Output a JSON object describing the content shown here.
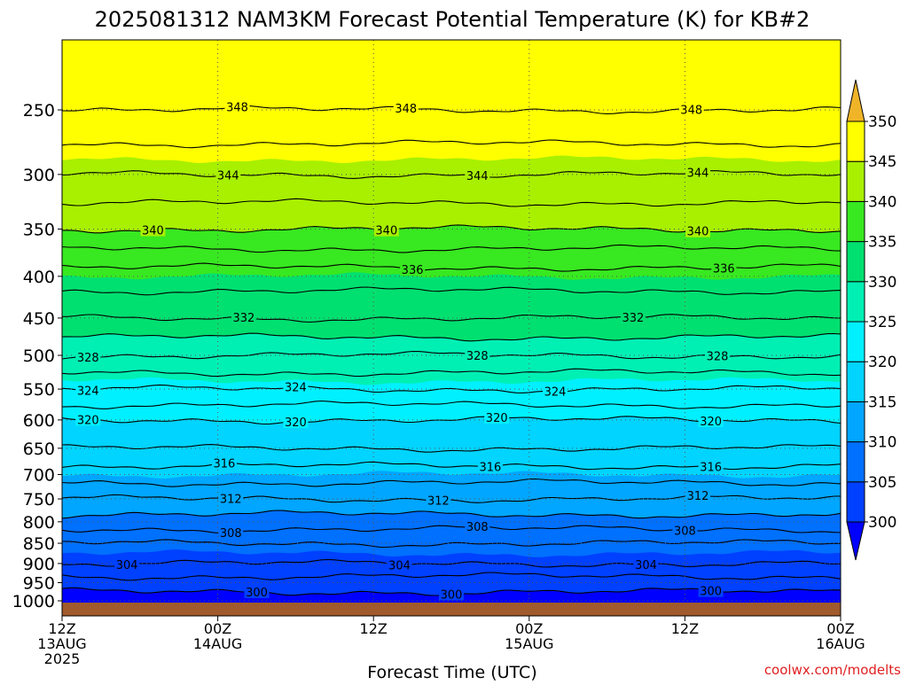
{
  "chart_data": {
    "type": "heatmap",
    "title": "2025081312 NAM3KM Forecast Potential Temperature (K) for KB#2",
    "xlabel": "Forecast Time (UTC)",
    "ylabel": "",
    "credit": "coolwx.com/modelts",
    "x_ticks": [
      {
        "hours": 0,
        "lines": [
          "12Z",
          "13AUG",
          "2025"
        ]
      },
      {
        "hours": 12,
        "lines": [
          "00Z",
          "14AUG"
        ]
      },
      {
        "hours": 24,
        "lines": [
          "12Z"
        ]
      },
      {
        "hours": 36,
        "lines": [
          "00Z",
          "15AUG"
        ]
      },
      {
        "hours": 48,
        "lines": [
          "12Z"
        ]
      },
      {
        "hours": 60,
        "lines": [
          "00Z",
          "16AUG"
        ]
      }
    ],
    "xlim": [
      0,
      60
    ],
    "y_ticks": [
      250,
      300,
      350,
      400,
      450,
      500,
      550,
      600,
      650,
      700,
      750,
      800,
      850,
      900,
      950,
      1000
    ],
    "ylim": [
      1010,
      205
    ],
    "colorbar": {
      "ticks": [
        300,
        305,
        310,
        315,
        320,
        325,
        330,
        335,
        340,
        345,
        350
      ],
      "bins": [
        {
          "lo": 295,
          "hi": 300,
          "color": "#0000ff"
        },
        {
          "lo": 300,
          "hi": 305,
          "color": "#0040ff"
        },
        {
          "lo": 305,
          "hi": 310,
          "color": "#0070ff"
        },
        {
          "lo": 310,
          "hi": 315,
          "color": "#00a6ff"
        },
        {
          "lo": 315,
          "hi": 320,
          "color": "#00d4ff"
        },
        {
          "lo": 320,
          "hi": 325,
          "color": "#00f0ff"
        },
        {
          "lo": 325,
          "hi": 330,
          "color": "#00f0b4"
        },
        {
          "lo": 330,
          "hi": 335,
          "color": "#00e070"
        },
        {
          "lo": 335,
          "hi": 340,
          "color": "#38e820"
        },
        {
          "lo": 340,
          "hi": 345,
          "color": "#a8f000"
        },
        {
          "lo": 345,
          "hi": 350,
          "color": "#ffff00"
        },
        {
          "lo": 350,
          "hi": 355,
          "color": "#f0b428"
        }
      ]
    },
    "contour_profile": [
      {
        "p": 230,
        "theta": 350
      },
      {
        "p": 250,
        "theta": 348
      },
      {
        "p": 300,
        "theta": 344
      },
      {
        "p": 350,
        "theta": 340
      },
      {
        "p": 400,
        "theta": 335
      },
      {
        "p": 450,
        "theta": 332
      },
      {
        "p": 500,
        "theta": 328
      },
      {
        "p": 550,
        "theta": 324
      },
      {
        "p": 600,
        "theta": 320
      },
      {
        "p": 650,
        "theta": 318
      },
      {
        "p": 700,
        "theta": 315
      },
      {
        "p": 750,
        "theta": 312
      },
      {
        "p": 800,
        "theta": 309
      },
      {
        "p": 850,
        "theta": 306
      },
      {
        "p": 900,
        "theta": 304
      },
      {
        "p": 950,
        "theta": 301
      },
      {
        "p": 1000,
        "theta": 299
      }
    ],
    "contour_levels": [
      300,
      302,
      304,
      306,
      308,
      310,
      312,
      314,
      316,
      318,
      320,
      322,
      324,
      326,
      328,
      330,
      332,
      334,
      336,
      338,
      340,
      342,
      344,
      346,
      348
    ],
    "contour_labels": [
      {
        "level": 348,
        "hours": 13.5
      },
      {
        "level": 348,
        "hours": 26.5
      },
      {
        "level": 348,
        "hours": 48.5
      },
      {
        "level": 344,
        "hours": 12.8
      },
      {
        "level": 344,
        "hours": 32.0
      },
      {
        "level": 344,
        "hours": 49.0
      },
      {
        "level": 340,
        "hours": 7.0
      },
      {
        "level": 340,
        "hours": 25.0
      },
      {
        "level": 340,
        "hours": 49.0
      },
      {
        "level": 336,
        "hours": 27.0
      },
      {
        "level": 336,
        "hours": 51.0
      },
      {
        "level": 332,
        "hours": 14.0
      },
      {
        "level": 332,
        "hours": 44.0
      },
      {
        "level": 328,
        "hours": 2.0
      },
      {
        "level": 328,
        "hours": 32.0
      },
      {
        "level": 328,
        "hours": 50.5
      },
      {
        "level": 324,
        "hours": 2.0
      },
      {
        "level": 324,
        "hours": 18.0
      },
      {
        "level": 324,
        "hours": 38.0
      },
      {
        "level": 320,
        "hours": 2.0
      },
      {
        "level": 320,
        "hours": 18.0
      },
      {
        "level": 320,
        "hours": 33.5
      },
      {
        "level": 320,
        "hours": 50.0
      },
      {
        "level": 316,
        "hours": 12.5
      },
      {
        "level": 316,
        "hours": 33.0
      },
      {
        "level": 316,
        "hours": 50.0
      },
      {
        "level": 312,
        "hours": 13.0
      },
      {
        "level": 312,
        "hours": 29.0
      },
      {
        "level": 312,
        "hours": 49.0
      },
      {
        "level": 308,
        "hours": 13.0
      },
      {
        "level": 308,
        "hours": 32.0
      },
      {
        "level": 308,
        "hours": 48.0
      },
      {
        "level": 304,
        "hours": 5.0
      },
      {
        "level": 304,
        "hours": 26.0
      },
      {
        "level": 304,
        "hours": 45.0
      },
      {
        "level": 300,
        "hours": 15.0
      },
      {
        "level": 300,
        "hours": 30.0
      },
      {
        "level": 300,
        "hours": 50.0
      }
    ],
    "grid": true
  }
}
